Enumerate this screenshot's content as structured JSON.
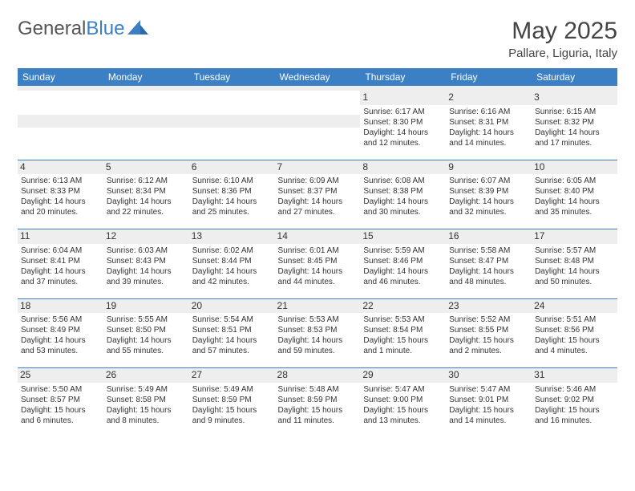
{
  "brand": {
    "part1": "General",
    "part2": "Blue"
  },
  "title": "May 2025",
  "location": "Pallare, Liguria, Italy",
  "colors": {
    "header_bg": "#3b7fc4",
    "header_text": "#ffffff",
    "spacer_bg": "#eeeeee",
    "text": "#333333",
    "page_bg": "#ffffff"
  },
  "dow": [
    "Sunday",
    "Monday",
    "Tuesday",
    "Wednesday",
    "Thursday",
    "Friday",
    "Saturday"
  ],
  "weeks": [
    [
      null,
      null,
      null,
      null,
      {
        "n": "1",
        "sr": "Sunrise: 6:17 AM",
        "ss": "Sunset: 8:30 PM",
        "d1": "Daylight: 14 hours",
        "d2": "and 12 minutes."
      },
      {
        "n": "2",
        "sr": "Sunrise: 6:16 AM",
        "ss": "Sunset: 8:31 PM",
        "d1": "Daylight: 14 hours",
        "d2": "and 14 minutes."
      },
      {
        "n": "3",
        "sr": "Sunrise: 6:15 AM",
        "ss": "Sunset: 8:32 PM",
        "d1": "Daylight: 14 hours",
        "d2": "and 17 minutes."
      }
    ],
    [
      {
        "n": "4",
        "sr": "Sunrise: 6:13 AM",
        "ss": "Sunset: 8:33 PM",
        "d1": "Daylight: 14 hours",
        "d2": "and 20 minutes."
      },
      {
        "n": "5",
        "sr": "Sunrise: 6:12 AM",
        "ss": "Sunset: 8:34 PM",
        "d1": "Daylight: 14 hours",
        "d2": "and 22 minutes."
      },
      {
        "n": "6",
        "sr": "Sunrise: 6:10 AM",
        "ss": "Sunset: 8:36 PM",
        "d1": "Daylight: 14 hours",
        "d2": "and 25 minutes."
      },
      {
        "n": "7",
        "sr": "Sunrise: 6:09 AM",
        "ss": "Sunset: 8:37 PM",
        "d1": "Daylight: 14 hours",
        "d2": "and 27 minutes."
      },
      {
        "n": "8",
        "sr": "Sunrise: 6:08 AM",
        "ss": "Sunset: 8:38 PM",
        "d1": "Daylight: 14 hours",
        "d2": "and 30 minutes."
      },
      {
        "n": "9",
        "sr": "Sunrise: 6:07 AM",
        "ss": "Sunset: 8:39 PM",
        "d1": "Daylight: 14 hours",
        "d2": "and 32 minutes."
      },
      {
        "n": "10",
        "sr": "Sunrise: 6:05 AM",
        "ss": "Sunset: 8:40 PM",
        "d1": "Daylight: 14 hours",
        "d2": "and 35 minutes."
      }
    ],
    [
      {
        "n": "11",
        "sr": "Sunrise: 6:04 AM",
        "ss": "Sunset: 8:41 PM",
        "d1": "Daylight: 14 hours",
        "d2": "and 37 minutes."
      },
      {
        "n": "12",
        "sr": "Sunrise: 6:03 AM",
        "ss": "Sunset: 8:43 PM",
        "d1": "Daylight: 14 hours",
        "d2": "and 39 minutes."
      },
      {
        "n": "13",
        "sr": "Sunrise: 6:02 AM",
        "ss": "Sunset: 8:44 PM",
        "d1": "Daylight: 14 hours",
        "d2": "and 42 minutes."
      },
      {
        "n": "14",
        "sr": "Sunrise: 6:01 AM",
        "ss": "Sunset: 8:45 PM",
        "d1": "Daylight: 14 hours",
        "d2": "and 44 minutes."
      },
      {
        "n": "15",
        "sr": "Sunrise: 5:59 AM",
        "ss": "Sunset: 8:46 PM",
        "d1": "Daylight: 14 hours",
        "d2": "and 46 minutes."
      },
      {
        "n": "16",
        "sr": "Sunrise: 5:58 AM",
        "ss": "Sunset: 8:47 PM",
        "d1": "Daylight: 14 hours",
        "d2": "and 48 minutes."
      },
      {
        "n": "17",
        "sr": "Sunrise: 5:57 AM",
        "ss": "Sunset: 8:48 PM",
        "d1": "Daylight: 14 hours",
        "d2": "and 50 minutes."
      }
    ],
    [
      {
        "n": "18",
        "sr": "Sunrise: 5:56 AM",
        "ss": "Sunset: 8:49 PM",
        "d1": "Daylight: 14 hours",
        "d2": "and 53 minutes."
      },
      {
        "n": "19",
        "sr": "Sunrise: 5:55 AM",
        "ss": "Sunset: 8:50 PM",
        "d1": "Daylight: 14 hours",
        "d2": "and 55 minutes."
      },
      {
        "n": "20",
        "sr": "Sunrise: 5:54 AM",
        "ss": "Sunset: 8:51 PM",
        "d1": "Daylight: 14 hours",
        "d2": "and 57 minutes."
      },
      {
        "n": "21",
        "sr": "Sunrise: 5:53 AM",
        "ss": "Sunset: 8:53 PM",
        "d1": "Daylight: 14 hours",
        "d2": "and 59 minutes."
      },
      {
        "n": "22",
        "sr": "Sunrise: 5:53 AM",
        "ss": "Sunset: 8:54 PM",
        "d1": "Daylight: 15 hours",
        "d2": "and 1 minute."
      },
      {
        "n": "23",
        "sr": "Sunrise: 5:52 AM",
        "ss": "Sunset: 8:55 PM",
        "d1": "Daylight: 15 hours",
        "d2": "and 2 minutes."
      },
      {
        "n": "24",
        "sr": "Sunrise: 5:51 AM",
        "ss": "Sunset: 8:56 PM",
        "d1": "Daylight: 15 hours",
        "d2": "and 4 minutes."
      }
    ],
    [
      {
        "n": "25",
        "sr": "Sunrise: 5:50 AM",
        "ss": "Sunset: 8:57 PM",
        "d1": "Daylight: 15 hours",
        "d2": "and 6 minutes."
      },
      {
        "n": "26",
        "sr": "Sunrise: 5:49 AM",
        "ss": "Sunset: 8:58 PM",
        "d1": "Daylight: 15 hours",
        "d2": "and 8 minutes."
      },
      {
        "n": "27",
        "sr": "Sunrise: 5:49 AM",
        "ss": "Sunset: 8:59 PM",
        "d1": "Daylight: 15 hours",
        "d2": "and 9 minutes."
      },
      {
        "n": "28",
        "sr": "Sunrise: 5:48 AM",
        "ss": "Sunset: 8:59 PM",
        "d1": "Daylight: 15 hours",
        "d2": "and 11 minutes."
      },
      {
        "n": "29",
        "sr": "Sunrise: 5:47 AM",
        "ss": "Sunset: 9:00 PM",
        "d1": "Daylight: 15 hours",
        "d2": "and 13 minutes."
      },
      {
        "n": "30",
        "sr": "Sunrise: 5:47 AM",
        "ss": "Sunset: 9:01 PM",
        "d1": "Daylight: 15 hours",
        "d2": "and 14 minutes."
      },
      {
        "n": "31",
        "sr": "Sunrise: 5:46 AM",
        "ss": "Sunset: 9:02 PM",
        "d1": "Daylight: 15 hours",
        "d2": "and 16 minutes."
      }
    ]
  ]
}
